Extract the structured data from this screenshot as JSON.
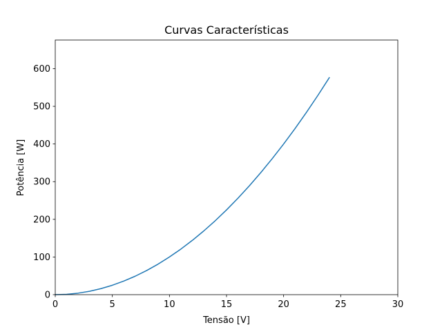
{
  "chart_data": {
    "type": "line",
    "title": "Curvas Características",
    "xlabel": "Tensão [V]",
    "ylabel": "Potência [W]",
    "xlim": [
      0,
      30
    ],
    "ylim": [
      0,
      676
    ],
    "xticks": [
      0,
      5,
      10,
      15,
      20,
      25,
      30
    ],
    "yticks": [
      0,
      100,
      200,
      300,
      400,
      500,
      600
    ],
    "grid": false,
    "legend": "none",
    "series": [
      {
        "color": "#1f77b4",
        "x": [
          0,
          1,
          2,
          3,
          4,
          5,
          6,
          7,
          8,
          9,
          10,
          11,
          12,
          13,
          14,
          15,
          16,
          17,
          18,
          19,
          20,
          21,
          22,
          23,
          24
        ],
        "y": [
          0,
          1,
          4,
          9,
          16,
          25,
          36,
          49,
          64,
          81,
          100,
          121,
          144,
          169,
          196,
          225,
          256,
          289,
          324,
          361,
          400,
          441,
          484,
          529,
          576
        ]
      }
    ]
  }
}
